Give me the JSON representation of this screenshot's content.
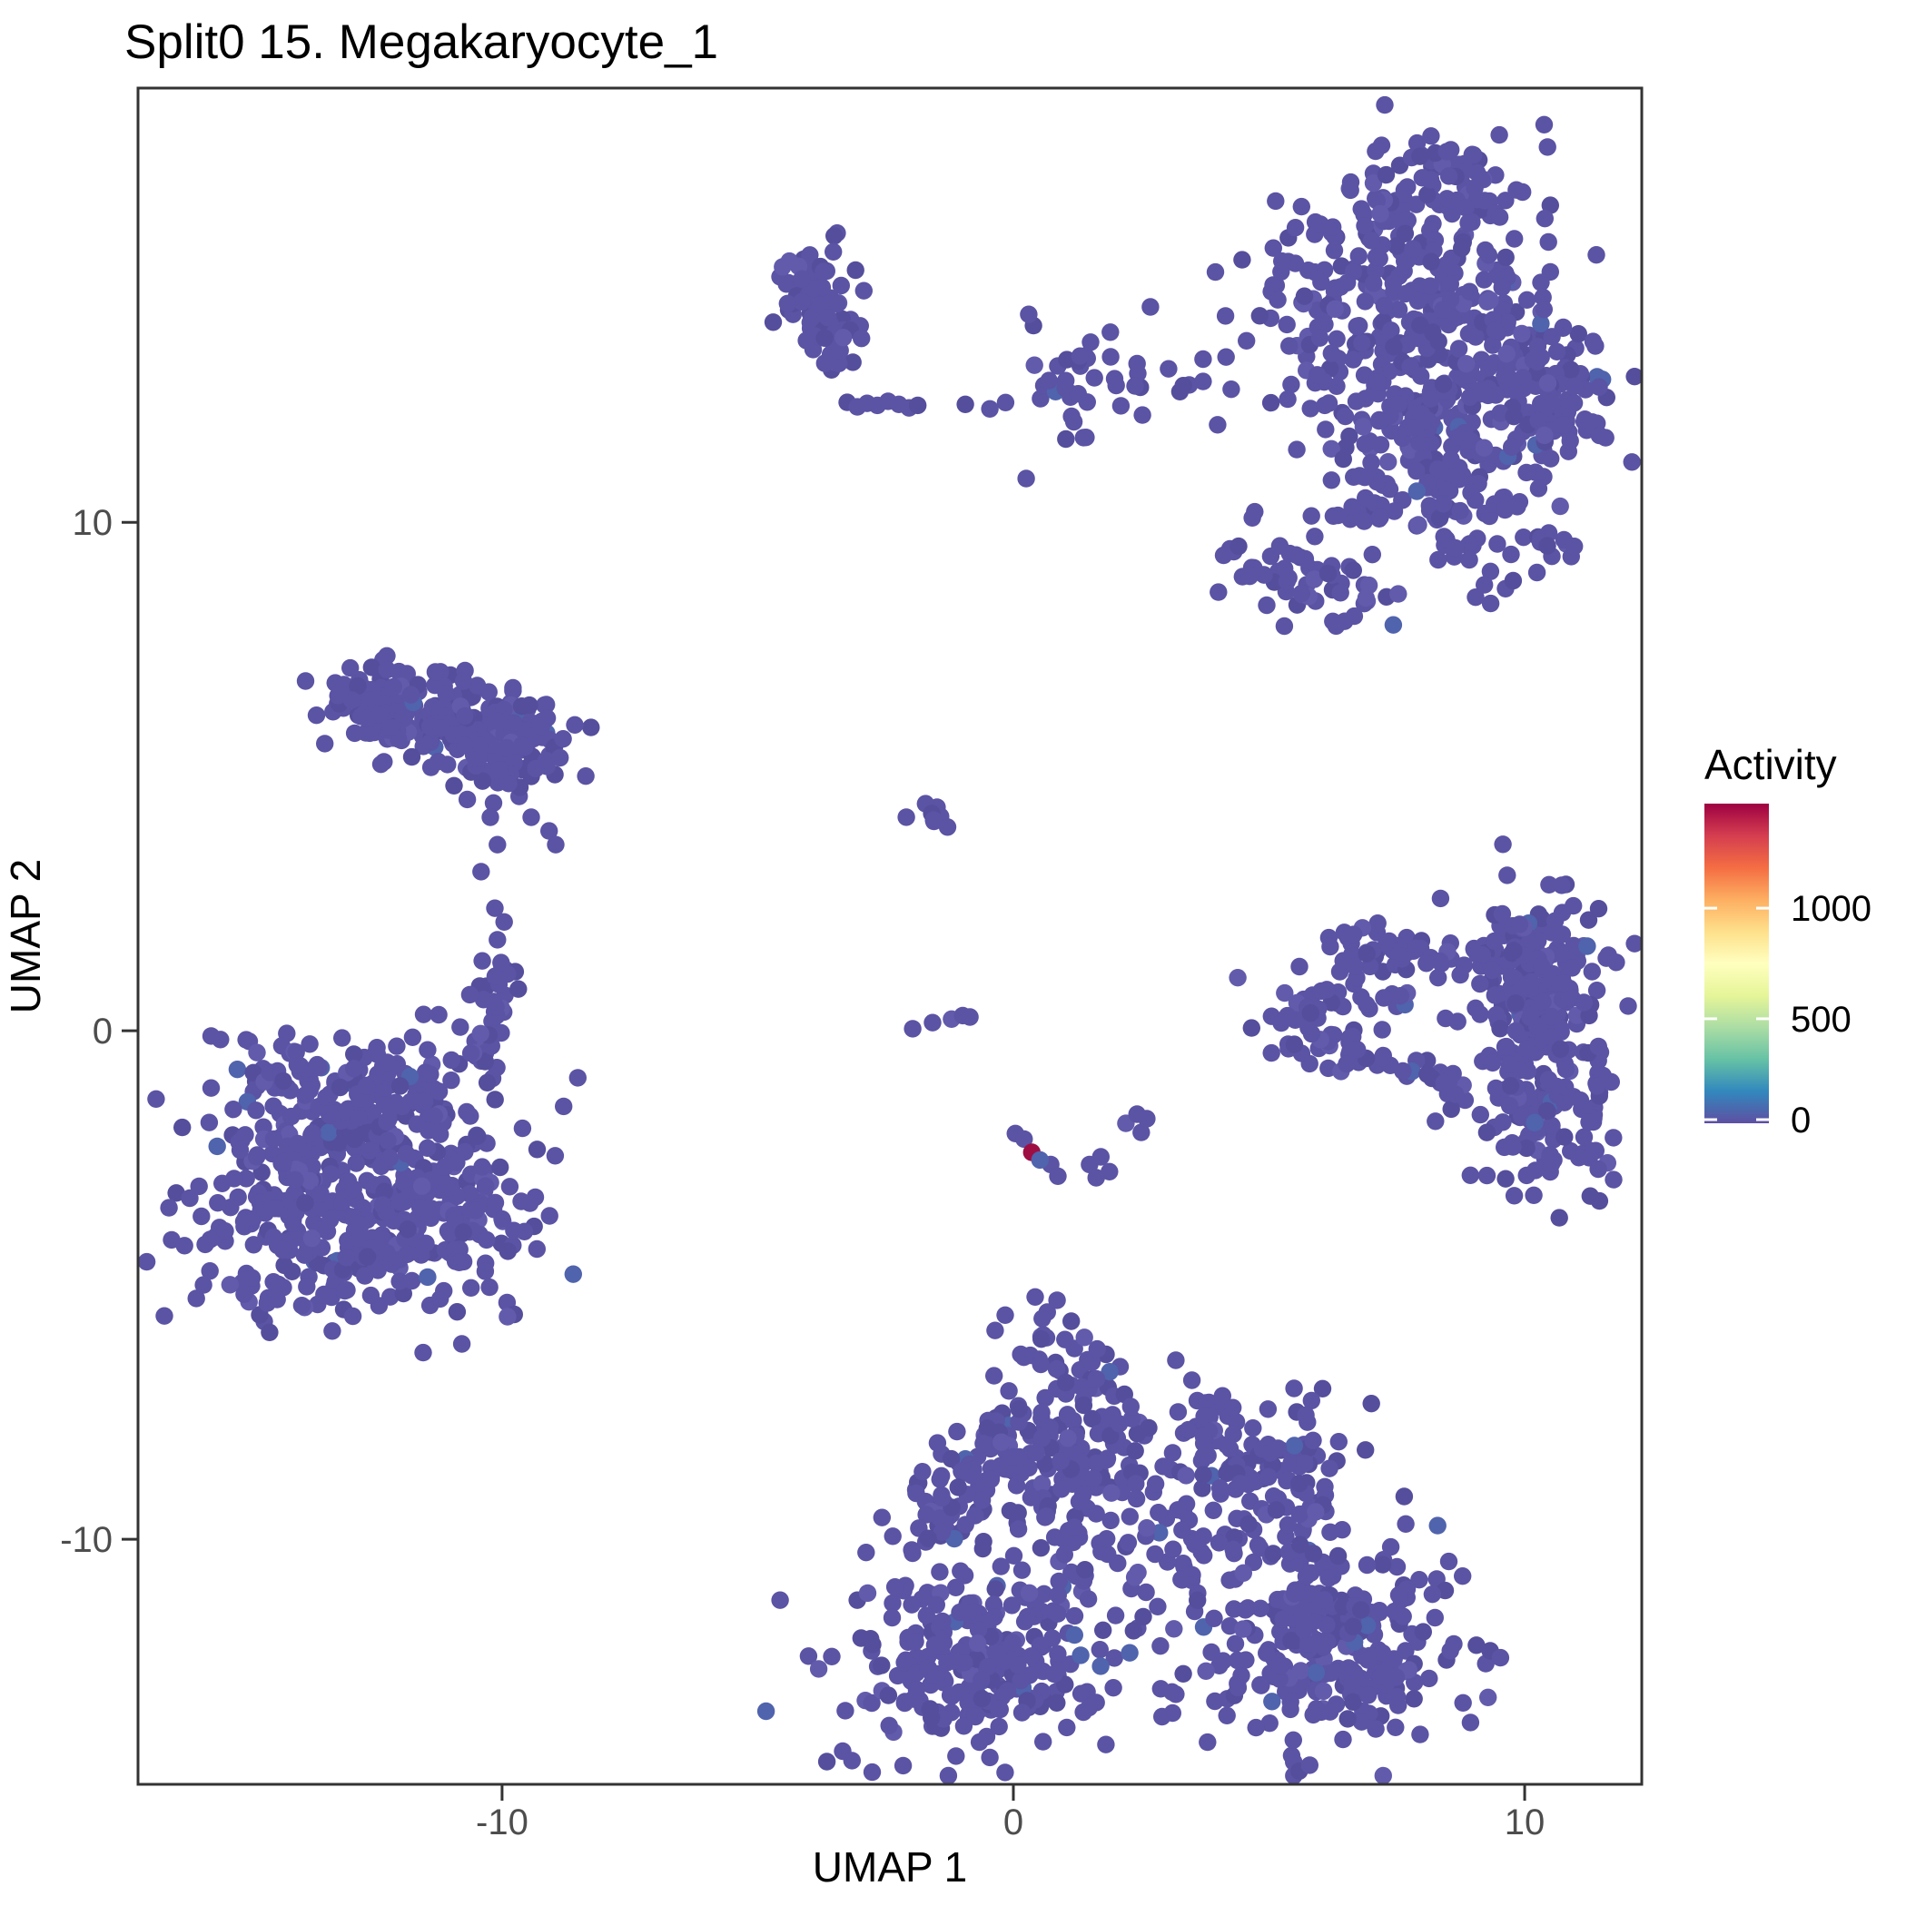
{
  "title": "Split0 15. Megakaryocyte_1",
  "axes": {
    "x_label": "UMAP 1",
    "y_label": "UMAP 2",
    "x_ticks": [
      -10,
      0,
      10
    ],
    "y_ticks": [
      -10,
      0,
      10
    ]
  },
  "legend": {
    "title": "Activity",
    "ticks": [
      {
        "label": "1000",
        "frac": 0.673
      },
      {
        "label": "500",
        "frac": 0.327
      },
      {
        "label": "0",
        "frac": 0.0
      }
    ],
    "gradient_top_to_bottom": [
      "#9E0142",
      "#D53E4F",
      "#F46D43",
      "#FDAE61",
      "#FEE08B",
      "#FFFFBF",
      "#E6F598",
      "#ABDDA4",
      "#66C2A5",
      "#3288BD",
      "#5E4FA2"
    ]
  },
  "colors": {
    "background": "#ffffff",
    "panel_border": "#333333",
    "tick_text": "#4d4d4d",
    "text": "#000000",
    "point_shades": [
      "#5b53a4",
      "#554e9c",
      "#625bac"
    ],
    "point_low_activity": "#5063ad",
    "point_max": "#9e0e43"
  },
  "chart_data": {
    "type": "scatter",
    "title": "Split0 15. Megakaryocyte_1",
    "xlabel": "UMAP 1",
    "ylabel": "UMAP 2",
    "xlim": [
      -17.12,
      12.29
    ],
    "ylim": [
      -14.82,
      18.54
    ],
    "x_ticks": [
      -10,
      0,
      10
    ],
    "y_ticks": [
      -10,
      0,
      10
    ],
    "grid": false,
    "legend_position": "right",
    "color_scale": {
      "name": "spectral_reversed",
      "min": 0,
      "max": 1480,
      "legend_ticks": [
        0,
        500,
        1000
      ]
    },
    "point_radius_px": 9.7,
    "seed": 42,
    "clusters": [
      {
        "id": "topright-1",
        "kind": "gauss",
        "cx": 8.42,
        "cy": 16.52,
        "sx": 0.98,
        "sy": 0.71,
        "n": 90
      },
      {
        "id": "topright-2",
        "kind": "gauss",
        "cx": 7.18,
        "cy": 14.38,
        "sx": 1.33,
        "sy": 0.98,
        "n": 200
      },
      {
        "id": "topright-3",
        "kind": "gauss",
        "cx": 9.48,
        "cy": 13.3,
        "sx": 0.98,
        "sy": 0.89,
        "n": 130
      },
      {
        "id": "topright-4",
        "kind": "gauss",
        "cx": 7.89,
        "cy": 11.88,
        "sx": 1.24,
        "sy": 0.8,
        "n": 150
      },
      {
        "id": "topright-5",
        "kind": "gauss",
        "cx": 8.42,
        "cy": 10.54,
        "sx": 1.07,
        "sy": 0.45,
        "n": 60
      },
      {
        "id": "topright-6",
        "kind": "gauss",
        "cx": 10.46,
        "cy": 12.14,
        "sx": 0.62,
        "sy": 0.62,
        "n": 50
      },
      {
        "id": "topright-sat1",
        "kind": "gauss",
        "cx": 5.4,
        "cy": 9.02,
        "sx": 0.71,
        "sy": 0.54,
        "n": 45
      },
      {
        "id": "topright-sat2",
        "kind": "gauss",
        "cx": 6.87,
        "cy": 8.66,
        "sx": 0.39,
        "sy": 0.39,
        "n": 14
      },
      {
        "id": "topright-sat3",
        "kind": "line",
        "x1": 8.24,
        "y1": 9.29,
        "x2": 9.08,
        "y2": 9.77,
        "jitter": 0.15,
        "n": 8
      },
      {
        "id": "topright-sat4",
        "kind": "gauss",
        "cx": 9.48,
        "cy": 8.84,
        "sx": 0.36,
        "sy": 0.32,
        "n": 10
      },
      {
        "id": "topright-sat5",
        "kind": "line",
        "x1": 10.3,
        "y1": 9.7,
        "x2": 11.02,
        "y2": 9.45,
        "jitter": 0.12,
        "n": 9
      },
      {
        "id": "midtop-loose",
        "kind": "gauss",
        "cx": 1.49,
        "cy": 12.7,
        "sx": 0.8,
        "sy": 0.63,
        "n": 40
      },
      {
        "id": "topmid-blob1",
        "kind": "gauss",
        "cx": -3.89,
        "cy": 14.55,
        "sx": 0.39,
        "sy": 0.5,
        "n": 55
      },
      {
        "id": "topmid-blob2",
        "kind": "gauss",
        "cx": -3.62,
        "cy": 13.52,
        "sx": 0.3,
        "sy": 0.34,
        "n": 25
      },
      {
        "id": "leftmid-ridge",
        "kind": "line",
        "x1": -12.9,
        "y1": 6.61,
        "x2": -9.17,
        "y2": 5.8,
        "jitter": 0.42,
        "n": 170
      },
      {
        "id": "leftmid-ext",
        "kind": "gauss",
        "cx": -9.88,
        "cy": 5.39,
        "sx": 0.55,
        "sy": 0.35,
        "n": 45
      },
      {
        "id": "leftmid-head",
        "kind": "gauss",
        "cx": -12.18,
        "cy": 6.34,
        "sx": 0.8,
        "sy": 0.45,
        "n": 60
      },
      {
        "id": "botleft-1",
        "kind": "gauss",
        "cx": -13.96,
        "cy": -2.23,
        "sx": 1.0,
        "sy": 0.98,
        "n": 150
      },
      {
        "id": "botleft-2",
        "kind": "gauss",
        "cx": -11.83,
        "cy": -2.05,
        "sx": 1.15,
        "sy": 0.89,
        "n": 150
      },
      {
        "id": "botleft-3",
        "kind": "gauss",
        "cx": -13.6,
        "cy": -4.2,
        "sx": 1.3,
        "sy": 0.85,
        "n": 160
      },
      {
        "id": "botleft-4",
        "kind": "gauss",
        "cx": -11.3,
        "cy": -3.84,
        "sx": 1.0,
        "sy": 0.8,
        "n": 100
      },
      {
        "id": "botleft-arm",
        "kind": "line",
        "x1": -9.79,
        "y1": 1.25,
        "x2": -10.59,
        "y2": -0.54,
        "jitter": 0.25,
        "n": 35
      },
      {
        "id": "botleft-top",
        "kind": "gauss",
        "cx": -12.9,
        "cy": -0.98,
        "sx": 1.07,
        "sy": 0.45,
        "n": 60
      },
      {
        "id": "center-clump",
        "kind": "gauss",
        "cx": -1.65,
        "cy": 4.29,
        "sx": 0.26,
        "sy": 0.24,
        "n": 9
      },
      {
        "id": "ring-left",
        "kind": "gauss",
        "cx": 5.88,
        "cy": 0.21,
        "sx": 0.55,
        "sy": 0.65,
        "n": 55
      },
      {
        "id": "ring-topchain",
        "kind": "line",
        "x1": 6.9,
        "y1": 1.55,
        "x2": 9.45,
        "y2": 1.48,
        "jitter": 0.18,
        "n": 32
      },
      {
        "id": "ring-topleft",
        "kind": "gauss",
        "cx": 6.82,
        "cy": 1.6,
        "sx": 0.35,
        "sy": 0.42,
        "n": 20
      },
      {
        "id": "ring-right-top",
        "kind": "gauss",
        "cx": 10.2,
        "cy": 1.05,
        "sx": 0.75,
        "sy": 0.85,
        "n": 150
      },
      {
        "id": "ring-right-bot",
        "kind": "gauss",
        "cx": 10.37,
        "cy": -1.6,
        "sx": 0.7,
        "sy": 0.8,
        "n": 120
      },
      {
        "id": "ring-botchain",
        "kind": "line",
        "x1": 6.46,
        "y1": -0.27,
        "x2": 8.77,
        "y2": -1.16,
        "jitter": 0.18,
        "n": 28
      },
      {
        "id": "ring-right-mid",
        "kind": "gauss",
        "cx": 10.16,
        "cy": 0.18,
        "sx": 0.4,
        "sy": 0.6,
        "n": 45
      },
      {
        "id": "ring-inner",
        "kind": "gauss",
        "cx": 7.53,
        "cy": 0.54,
        "sx": 0.36,
        "sy": 0.27,
        "n": 6
      },
      {
        "id": "bottom-top1",
        "kind": "gauss",
        "cx": 0.52,
        "cy": -6.7,
        "sx": 0.5,
        "sy": 0.62,
        "n": 30
      },
      {
        "id": "bottom-top2",
        "kind": "gauss",
        "cx": 1.49,
        "cy": -8.13,
        "sx": 0.8,
        "sy": 0.8,
        "n": 110
      },
      {
        "id": "bottom-leftmid",
        "kind": "gauss",
        "cx": -0.37,
        "cy": -8.66,
        "sx": 0.8,
        "sy": 0.62,
        "n": 80
      },
      {
        "id": "bottom-leftarm",
        "kind": "gauss",
        "cx": -1.44,
        "cy": -9.64,
        "sx": 0.36,
        "sy": 0.6,
        "n": 25
      },
      {
        "id": "bottom-pair",
        "kind": "gauss",
        "cx": 3.62,
        "cy": -7.59,
        "sx": 0.44,
        "sy": 0.36,
        "n": 15
      },
      {
        "id": "bottom-right1",
        "kind": "gauss",
        "cx": 5.04,
        "cy": -8.66,
        "sx": 0.89,
        "sy": 0.71,
        "n": 110
      },
      {
        "id": "bottom-botleft",
        "kind": "gauss",
        "cx": -0.73,
        "cy": -12.32,
        "sx": 1.33,
        "sy": 0.98,
        "n": 260
      },
      {
        "id": "bottom-botright",
        "kind": "gauss",
        "cx": 6.2,
        "cy": -12.14,
        "sx": 1.3,
        "sy": 1.0,
        "n": 260
      },
      {
        "id": "bottom-center",
        "kind": "gauss",
        "cx": 2.91,
        "cy": -10.09,
        "sx": 1.24,
        "sy": 0.8,
        "n": 60
      },
      {
        "id": "bottom-rightconn",
        "kind": "gauss",
        "cx": 5.84,
        "cy": -10.63,
        "sx": 0.32,
        "sy": 0.63,
        "n": 20
      }
    ],
    "extra_points": [
      [
        3.71,
        13.21
      ],
      [
        4.16,
        13.25
      ],
      [
        4.56,
        13.57
      ],
      [
        3.71,
        12.77
      ],
      [
        2.42,
        13.12
      ],
      [
        2.38,
        12.68
      ],
      [
        0.3,
        14.09
      ],
      [
        -0.94,
        12.32
      ],
      [
        -0.46,
        12.23
      ],
      [
        0.25,
        10.86
      ],
      [
        -3.25,
        12.36
      ],
      [
        -3.05,
        12.27
      ],
      [
        -2.86,
        12.34
      ],
      [
        -2.66,
        12.3
      ],
      [
        -2.45,
        12.38
      ],
      [
        -2.24,
        12.32
      ],
      [
        -2.04,
        12.25
      ],
      [
        -1.87,
        12.3
      ],
      [
        -11.39,
        5.18
      ],
      [
        -10.94,
        4.82
      ],
      [
        -10.68,
        4.55
      ],
      [
        -10.23,
        4.2
      ],
      [
        -10.09,
        3.66
      ],
      [
        -9.43,
        4.2
      ],
      [
        -9.08,
        3.93
      ],
      [
        -8.95,
        3.66
      ],
      [
        -10.41,
        3.13
      ],
      [
        -10.14,
        2.41
      ],
      [
        -9.96,
        2.14
      ],
      [
        -10.09,
        1.79
      ],
      [
        -10.02,
        1.34
      ],
      [
        -1.97,
        0.04
      ],
      [
        -1.58,
        0.16
      ],
      [
        -1.21,
        0.23
      ],
      [
        -0.99,
        0.3
      ],
      [
        -0.85,
        0.27
      ],
      [
        0.04,
        -2.02
      ],
      [
        0.21,
        -2.13
      ],
      [
        0.73,
        -2.63
      ],
      [
        0.87,
        -2.86
      ],
      [
        1.49,
        -2.63
      ],
      [
        1.71,
        -2.48
      ],
      [
        1.88,
        -2.77
      ],
      [
        1.62,
        -2.89
      ],
      [
        2.2,
        -1.82
      ],
      [
        2.42,
        -1.64
      ],
      [
        2.61,
        -1.73
      ],
      [
        2.5,
        -2.0
      ],
      [
        8.74,
        1.1
      ],
      [
        1.94,
        -7.55
      ],
      [
        0.1,
        -9.8
      ],
      [
        1.0,
        -10.3
      ],
      [
        1.4,
        -10.6
      ],
      [
        2.0,
        -11.5
      ],
      [
        2.35,
        -11.8
      ],
      [
        3.3,
        -10.8
      ],
      [
        3.6,
        -11.2
      ],
      [
        4.3,
        -10.2
      ],
      [
        4.6,
        -9.7
      ]
    ],
    "highlight_point": {
      "x": 0.36,
      "y": -2.39,
      "activity": 1480
    },
    "low_activity_point": {
      "x": 0.52,
      "y": -2.54,
      "activity": 150
    }
  }
}
